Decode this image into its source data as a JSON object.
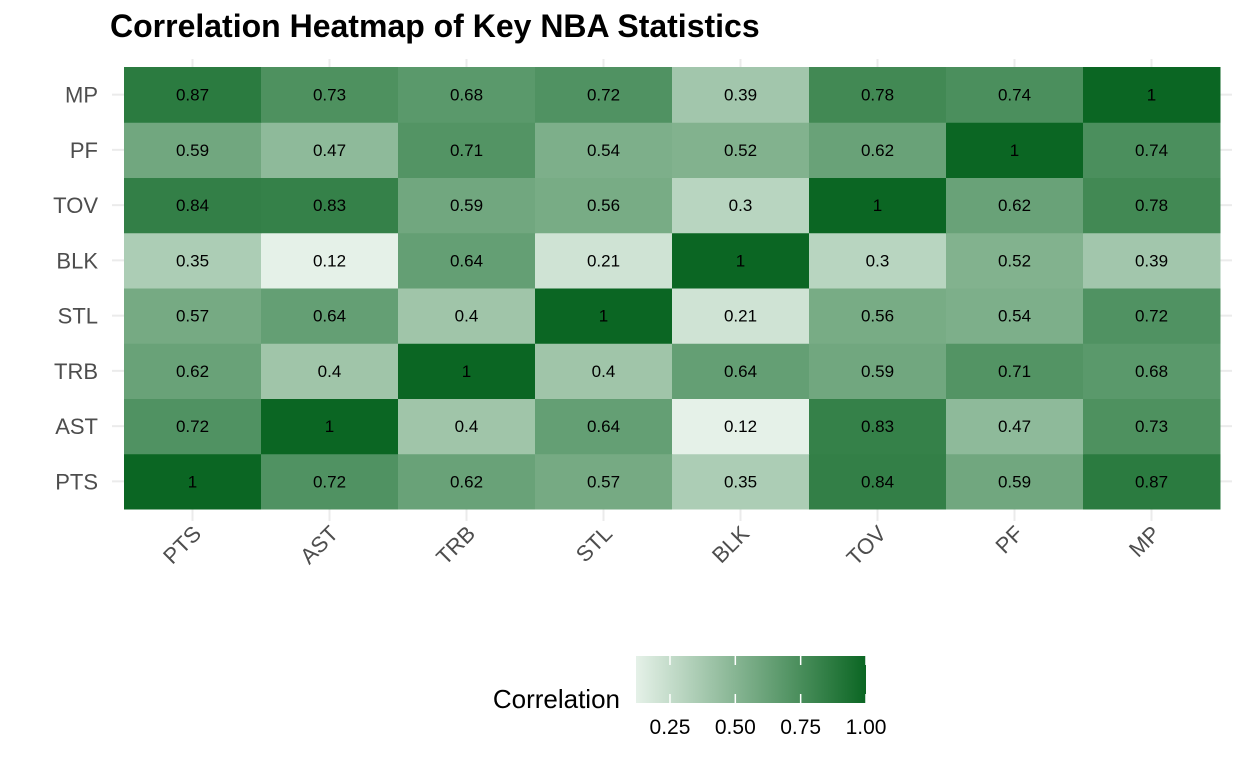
{
  "chart_data": {
    "type": "heatmap",
    "title": "Correlation Heatmap of Key NBA Statistics",
    "x_categories": [
      "PTS",
      "AST",
      "TRB",
      "STL",
      "BLK",
      "TOV",
      "PF",
      "MP"
    ],
    "y_categories": [
      "PTS",
      "AST",
      "TRB",
      "STL",
      "BLK",
      "TOV",
      "PF",
      "MP"
    ],
    "matrix": [
      [
        1,
        0.72,
        0.62,
        0.57,
        0.35,
        0.84,
        0.59,
        0.87
      ],
      [
        0.72,
        1,
        0.4,
        0.64,
        0.12,
        0.83,
        0.47,
        0.73
      ],
      [
        0.62,
        0.4,
        1,
        0.4,
        0.64,
        0.59,
        0.71,
        0.68
      ],
      [
        0.57,
        0.64,
        0.4,
        1,
        0.21,
        0.56,
        0.54,
        0.72
      ],
      [
        0.35,
        0.12,
        0.64,
        0.21,
        1,
        0.3,
        0.52,
        0.39
      ],
      [
        0.84,
        0.83,
        0.59,
        0.56,
        0.3,
        1,
        0.62,
        0.78
      ],
      [
        0.59,
        0.47,
        0.71,
        0.54,
        0.52,
        0.62,
        1,
        0.74
      ],
      [
        0.87,
        0.73,
        0.68,
        0.72,
        0.39,
        0.78,
        0.74,
        1
      ]
    ],
    "color_scale": {
      "low_color": "#e5f1e8",
      "high_color": "#0b6623",
      "min": 0.12,
      "max": 1.0
    },
    "legend": {
      "title": "Correlation",
      "position": "bottom",
      "ticks": [
        0.25,
        0.5,
        0.75,
        1.0
      ],
      "tick_labels": [
        "0.25",
        "0.50",
        "0.75",
        "1.00"
      ]
    },
    "x_tick_rotation": "45 degrees",
    "grid": true
  }
}
